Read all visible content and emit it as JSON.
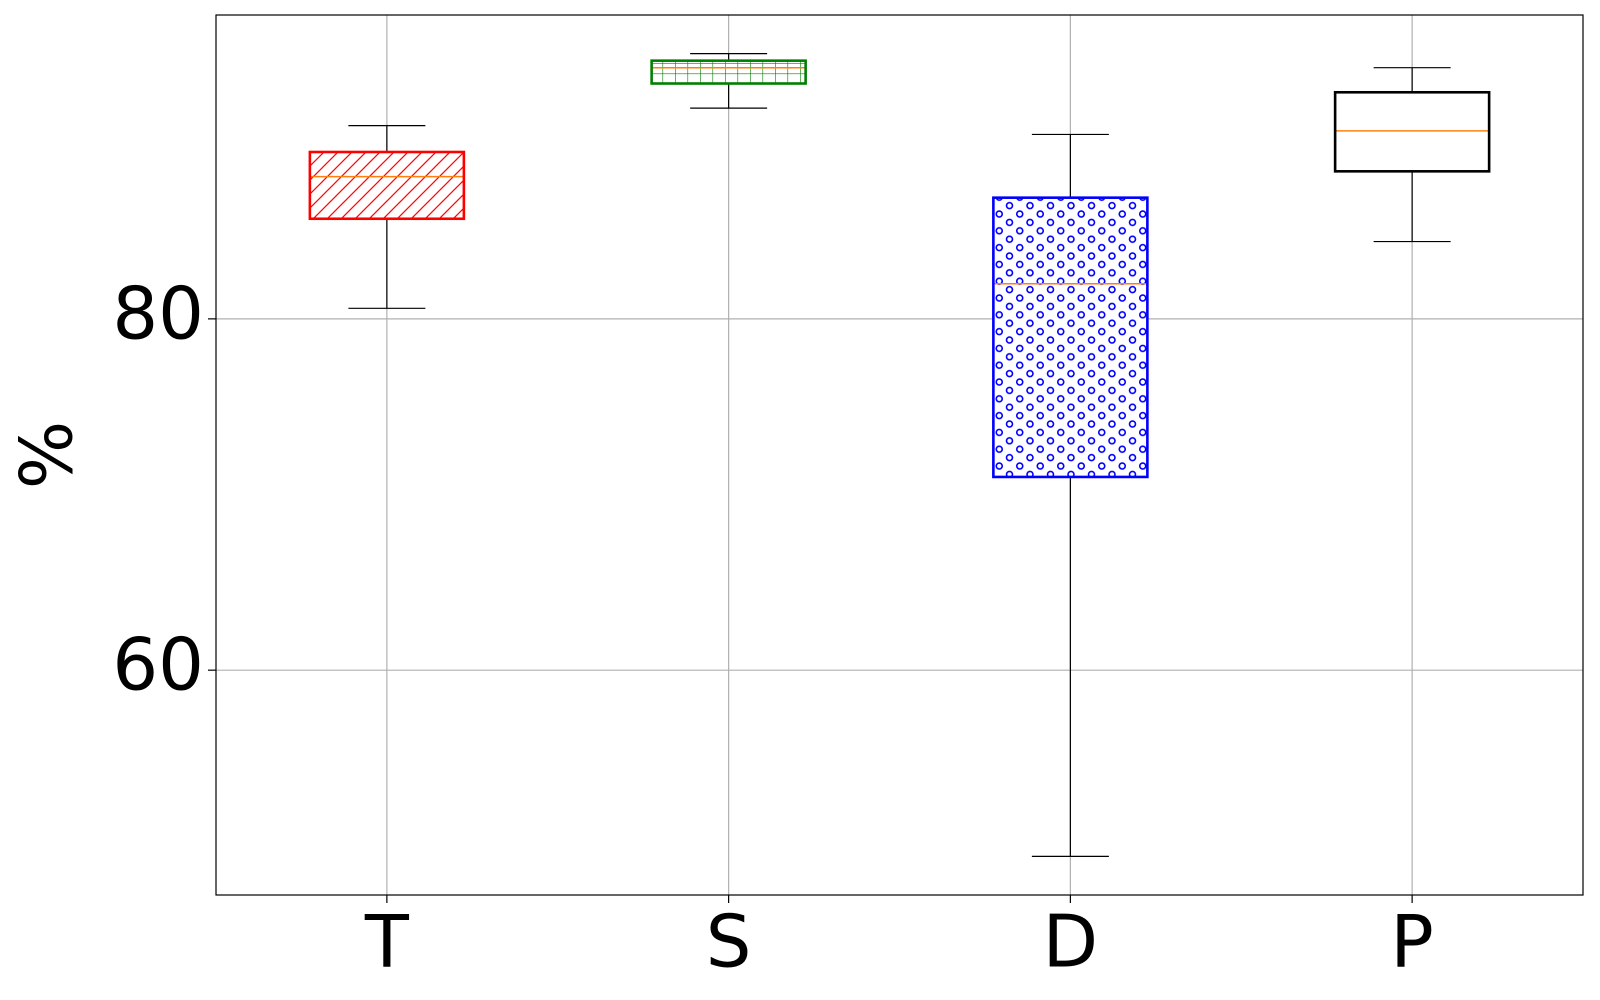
{
  "chart_data": {
    "type": "boxplot",
    "categories": [
      "T",
      "S",
      "D",
      "P"
    ],
    "ylabel": "%",
    "ylim": [
      47.2,
      97.3
    ],
    "yticks": [
      60,
      80
    ],
    "ytick_labels": [
      "60",
      "80"
    ],
    "grid": true,
    "boxes": [
      {
        "category": "T",
        "whisker_low": 80.6,
        "q1": 85.7,
        "median": 88.1,
        "q3": 89.5,
        "whisker_high": 91.0,
        "color": "#ff0000",
        "pattern": "diagonal-hatch"
      },
      {
        "category": "S",
        "whisker_low": 92.0,
        "q1": 93.4,
        "median": 94.3,
        "q3": 94.7,
        "whisker_high": 95.1,
        "color": "#008000",
        "pattern": "grid-hatch"
      },
      {
        "category": "D",
        "whisker_low": 49.4,
        "q1": 71.0,
        "median": 82.0,
        "q3": 86.9,
        "whisker_high": 90.5,
        "color": "#0000ff",
        "pattern": "circles"
      },
      {
        "category": "P",
        "whisker_low": 84.4,
        "q1": 88.4,
        "median": 90.7,
        "q3": 92.9,
        "whisker_high": 94.3,
        "color": "#000000",
        "pattern": "none"
      }
    ],
    "median_color": "#ff7f0e"
  }
}
